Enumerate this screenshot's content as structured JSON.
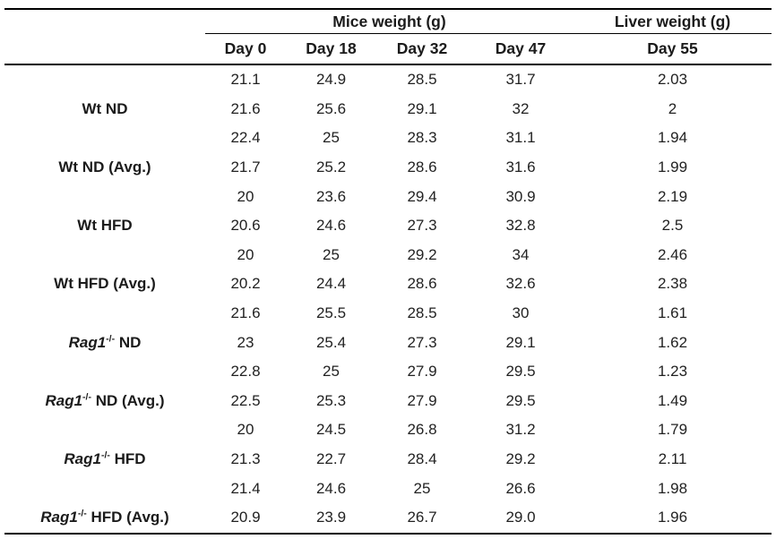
{
  "chart_data": {
    "type": "table",
    "group_headers": [
      "Mice weight (g)",
      "Liver weight (g)"
    ],
    "columns": [
      "Day 0",
      "Day 18",
      "Day 32",
      "Day 47",
      "Day 55"
    ],
    "rows": [
      {
        "label": {
          "italic": "",
          "sup": "",
          "text": ""
        },
        "values": [
          "21.1",
          "24.9",
          "28.5",
          "31.7",
          "2.03"
        ]
      },
      {
        "label": {
          "italic": "",
          "sup": "",
          "text": "Wt ND"
        },
        "values": [
          "21.6",
          "25.6",
          "29.1",
          "32",
          "2"
        ]
      },
      {
        "label": {
          "italic": "",
          "sup": "",
          "text": ""
        },
        "values": [
          "22.4",
          "25",
          "28.3",
          "31.1",
          "1.94"
        ]
      },
      {
        "label": {
          "italic": "",
          "sup": "",
          "text": "Wt ND (Avg.)"
        },
        "values": [
          "21.7",
          "25.2",
          "28.6",
          "31.6",
          "1.99"
        ]
      },
      {
        "label": {
          "italic": "",
          "sup": "",
          "text": ""
        },
        "values": [
          "20",
          "23.6",
          "29.4",
          "30.9",
          "2.19"
        ]
      },
      {
        "label": {
          "italic": "",
          "sup": "",
          "text": "Wt HFD"
        },
        "values": [
          "20.6",
          "24.6",
          "27.3",
          "32.8",
          "2.5"
        ]
      },
      {
        "label": {
          "italic": "",
          "sup": "",
          "text": ""
        },
        "values": [
          "20",
          "25",
          "29.2",
          "34",
          "2.46"
        ]
      },
      {
        "label": {
          "italic": "",
          "sup": "",
          "text": "Wt HFD (Avg.)"
        },
        "values": [
          "20.2",
          "24.4",
          "28.6",
          "32.6",
          "2.38"
        ]
      },
      {
        "label": {
          "italic": "",
          "sup": "",
          "text": ""
        },
        "values": [
          "21.6",
          "25.5",
          "28.5",
          "30",
          "1.61"
        ]
      },
      {
        "label": {
          "italic": "Rag1",
          "sup": "-/-",
          "text": " ND"
        },
        "values": [
          "23",
          "25.4",
          "27.3",
          "29.1",
          "1.62"
        ]
      },
      {
        "label": {
          "italic": "",
          "sup": "",
          "text": ""
        },
        "values": [
          "22.8",
          "25",
          "27.9",
          "29.5",
          "1.23"
        ]
      },
      {
        "label": {
          "italic": "Rag1",
          "sup": "-/-",
          "text": " ND (Avg.)"
        },
        "values": [
          "22.5",
          "25.3",
          "27.9",
          "29.5",
          "1.49"
        ]
      },
      {
        "label": {
          "italic": "",
          "sup": "",
          "text": ""
        },
        "values": [
          "20",
          "24.5",
          "26.8",
          "31.2",
          "1.79"
        ]
      },
      {
        "label": {
          "italic": "Rag1",
          "sup": "-/-",
          "text": " HFD"
        },
        "values": [
          "21.3",
          "22.7",
          "28.4",
          "29.2",
          "2.11"
        ]
      },
      {
        "label": {
          "italic": "",
          "sup": "",
          "text": ""
        },
        "values": [
          "21.4",
          "24.6",
          "25",
          "26.6",
          "1.98"
        ]
      },
      {
        "label": {
          "italic": "Rag1",
          "sup": "-/-",
          "text": " HFD (Avg.)"
        },
        "values": [
          "20.9",
          "23.9",
          "26.7",
          "29.0",
          "1.96"
        ]
      }
    ]
  },
  "colors": {
    "background": "#ffffff",
    "text": "#1b1b1b",
    "rule": "#000000"
  }
}
